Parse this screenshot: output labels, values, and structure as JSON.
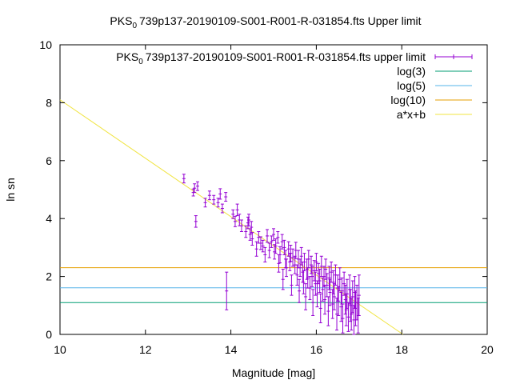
{
  "chart_data": {
    "type": "scatter",
    "title": "PKS 0 739p137-20190109-S001-R001-R-031854.fts Upper limit",
    "title_parts": {
      "pre": "PKS",
      "sub": "0",
      "post": "739p137-20190109-S001-R001-R-031854.fts Upper limit"
    },
    "xlabel": "Magnitude [mag]",
    "ylabel": "ln sn",
    "xlim": [
      10,
      20
    ],
    "ylim": [
      0,
      10
    ],
    "xticks": [
      10,
      12,
      14,
      16,
      18,
      20
    ],
    "yticks": [
      0,
      2,
      4,
      6,
      8,
      10
    ],
    "xtick_labels": [
      "10",
      "12",
      "14",
      "16",
      "18",
      "20"
    ],
    "ytick_labels": [
      "0",
      "2",
      "4",
      "6",
      "8",
      "10"
    ],
    "grid": false,
    "legend_position": "top-right",
    "legend": [
      {
        "key": "upper",
        "pre": "PKS",
        "sub": "0",
        "post": "739p137-20190109-S001-R001-R-031854.fts upper limit",
        "color": "#9400d3",
        "style": "errorbar"
      },
      {
        "key": "log3",
        "label": "log(3)",
        "color": "#009e73",
        "style": "line"
      },
      {
        "key": "log5",
        "label": "log(5)",
        "color": "#56b4e9",
        "style": "line"
      },
      {
        "key": "log10",
        "label": "log(10)",
        "color": "#e69f00",
        "style": "line"
      },
      {
        "key": "fit",
        "label": "a*x+b",
        "color": "#f0e442",
        "style": "line"
      }
    ],
    "hlines": [
      {
        "name": "log(3)",
        "y": 1.0986,
        "color": "#009e73"
      },
      {
        "name": "log(5)",
        "y": 1.6094,
        "color": "#56b4e9"
      },
      {
        "name": "log(10)",
        "y": 2.3026,
        "color": "#e69f00"
      }
    ],
    "fit_line": {
      "name": "a*x+b",
      "x": [
        10.0,
        18.03
      ],
      "y": [
        8.1,
        0.0
      ],
      "color": "#f0e442"
    },
    "series": [
      {
        "name": "PKS 0 739p137-20190109-S001-R001-R-031854.fts upper limit",
        "color": "#9400d3",
        "points": [
          [
            12.9,
            5.38,
            0.15
          ],
          [
            13.12,
            4.9,
            0.12
          ],
          [
            13.15,
            5.05,
            0.15
          ],
          [
            13.18,
            3.9,
            0.2
          ],
          [
            13.22,
            5.12,
            0.15
          ],
          [
            13.4,
            4.55,
            0.15
          ],
          [
            13.5,
            4.8,
            0.15
          ],
          [
            13.6,
            4.65,
            0.15
          ],
          [
            13.7,
            4.55,
            0.15
          ],
          [
            13.75,
            4.85,
            0.18
          ],
          [
            13.8,
            4.35,
            0.15
          ],
          [
            13.88,
            4.75,
            0.15
          ],
          [
            13.9,
            1.5,
            0.65
          ],
          [
            14.05,
            4.15,
            0.15
          ],
          [
            14.1,
            3.9,
            0.18
          ],
          [
            14.15,
            4.3,
            0.2
          ],
          [
            14.2,
            3.95,
            0.2
          ],
          [
            14.25,
            3.75,
            0.2
          ],
          [
            14.35,
            3.55,
            0.2
          ],
          [
            14.4,
            3.85,
            0.2
          ],
          [
            14.42,
            3.95,
            0.2
          ],
          [
            14.45,
            3.45,
            0.2
          ],
          [
            14.48,
            3.7,
            0.2
          ],
          [
            14.5,
            3.3,
            0.22
          ],
          [
            14.6,
            2.95,
            0.25
          ],
          [
            14.65,
            3.35,
            0.2
          ],
          [
            14.7,
            3.15,
            0.22
          ],
          [
            14.75,
            3.05,
            0.2
          ],
          [
            14.8,
            2.75,
            0.25
          ],
          [
            14.85,
            3.4,
            0.22
          ],
          [
            14.9,
            2.9,
            0.25
          ],
          [
            14.95,
            3.2,
            0.2
          ],
          [
            15.0,
            3.45,
            0.2
          ],
          [
            15.02,
            2.85,
            0.25
          ],
          [
            15.05,
            3.05,
            0.25
          ],
          [
            15.1,
            3.35,
            0.2
          ],
          [
            15.12,
            2.45,
            0.3
          ],
          [
            15.15,
            2.75,
            0.28
          ],
          [
            15.2,
            3.2,
            0.25
          ],
          [
            15.22,
            1.9,
            0.35
          ],
          [
            15.25,
            3.0,
            0.25
          ],
          [
            15.28,
            2.6,
            0.3
          ],
          [
            15.3,
            2.3,
            0.3
          ],
          [
            15.35,
            2.95,
            0.25
          ],
          [
            15.38,
            2.5,
            0.3
          ],
          [
            15.4,
            2.8,
            0.28
          ],
          [
            15.42,
            1.7,
            0.35
          ],
          [
            15.45,
            2.65,
            0.3
          ],
          [
            15.5,
            2.4,
            0.3
          ],
          [
            15.52,
            2.9,
            0.28
          ],
          [
            15.55,
            2.05,
            0.35
          ],
          [
            15.58,
            2.6,
            0.3
          ],
          [
            15.6,
            1.5,
            0.4
          ],
          [
            15.62,
            2.3,
            0.3
          ],
          [
            15.65,
            2.7,
            0.3
          ],
          [
            15.68,
            2.15,
            0.35
          ],
          [
            15.7,
            1.8,
            0.4
          ],
          [
            15.72,
            2.5,
            0.3
          ],
          [
            15.75,
            1.3,
            0.45
          ],
          [
            15.78,
            2.25,
            0.35
          ],
          [
            15.8,
            1.95,
            0.35
          ],
          [
            15.82,
            2.6,
            0.3
          ],
          [
            15.85,
            1.6,
            0.4
          ],
          [
            15.88,
            2.4,
            0.3
          ],
          [
            15.9,
            2.0,
            0.35
          ],
          [
            15.92,
            1.1,
            0.45
          ],
          [
            15.95,
            2.2,
            0.35
          ],
          [
            15.98,
            1.75,
            0.4
          ],
          [
            16.0,
            2.5,
            0.3
          ],
          [
            16.02,
            1.4,
            0.45
          ],
          [
            16.05,
            2.1,
            0.35
          ],
          [
            16.08,
            1.85,
            0.4
          ],
          [
            16.1,
            0.9,
            0.5
          ],
          [
            16.12,
            2.35,
            0.35
          ],
          [
            16.15,
            1.55,
            0.4
          ],
          [
            16.18,
            2.0,
            0.35
          ],
          [
            16.2,
            1.2,
            0.5
          ],
          [
            16.22,
            2.25,
            0.35
          ],
          [
            16.25,
            1.7,
            0.4
          ],
          [
            16.28,
            0.8,
            0.5
          ],
          [
            16.3,
            1.95,
            0.4
          ],
          [
            16.32,
            1.45,
            0.45
          ],
          [
            16.35,
            2.15,
            0.35
          ],
          [
            16.38,
            1.05,
            0.5
          ],
          [
            16.4,
            1.8,
            0.4
          ],
          [
            16.42,
            1.3,
            0.45
          ],
          [
            16.45,
            2.05,
            0.35
          ],
          [
            16.48,
            0.7,
            0.55
          ],
          [
            16.5,
            1.6,
            0.45
          ],
          [
            16.52,
            1.15,
            0.5
          ],
          [
            16.55,
            1.9,
            0.4
          ],
          [
            16.58,
            0.95,
            0.5
          ],
          [
            16.6,
            1.5,
            0.45
          ],
          [
            16.62,
            0.55,
            0.5
          ],
          [
            16.65,
            1.75,
            0.4
          ],
          [
            16.68,
            1.2,
            0.5
          ],
          [
            16.7,
            0.85,
            0.55
          ],
          [
            16.72,
            1.4,
            0.5
          ],
          [
            16.75,
            0.6,
            0.5
          ],
          [
            16.78,
            1.55,
            0.5
          ],
          [
            16.8,
            1.0,
            0.55
          ],
          [
            16.82,
            0.7,
            0.55
          ],
          [
            16.85,
            1.3,
            0.55
          ],
          [
            16.88,
            0.5,
            0.5
          ],
          [
            16.9,
            1.45,
            0.55
          ],
          [
            16.92,
            0.9,
            0.6
          ],
          [
            16.95,
            1.1,
            0.6
          ],
          [
            16.98,
            0.65,
            0.6
          ],
          [
            17.0,
            1.35,
            0.7
          ]
        ]
      }
    ]
  }
}
